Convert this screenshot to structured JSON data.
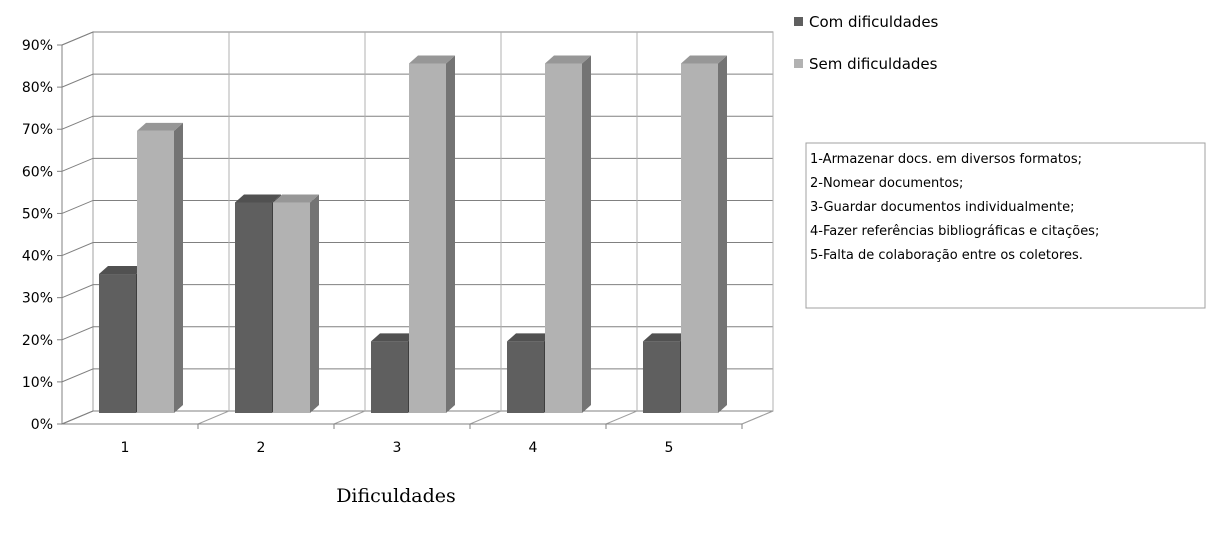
{
  "chart_data": {
    "type": "bar",
    "categories": [
      "1",
      "2",
      "3",
      "4",
      "5"
    ],
    "series": [
      {
        "name": "Com dificuldades",
        "values": [
          33,
          50,
          17,
          17,
          17
        ],
        "color": "#5f5f5f"
      },
      {
        "name": "Sem dificuldades",
        "values": [
          67,
          50,
          83,
          83,
          83
        ],
        "color": "#b2b2b2"
      }
    ],
    "title": "",
    "xlabel": "Dificuldades",
    "ylabel": "",
    "ylim": [
      0,
      90
    ],
    "yticks": [
      "0%",
      "10%",
      "20%",
      "30%",
      "40%",
      "50%",
      "60%",
      "70%",
      "80%",
      "90%"
    ],
    "grid": true,
    "legend_position": "top-right",
    "note_lines": [
      "1-Armazenar docs. em diversos formatos;",
      "2-Nomear documentos;",
      "3-Guardar documentos individualmente;",
      "4-Fazer referências bibliográficas e citações;",
      "5-Falta de colaboração entre os coletores."
    ]
  }
}
